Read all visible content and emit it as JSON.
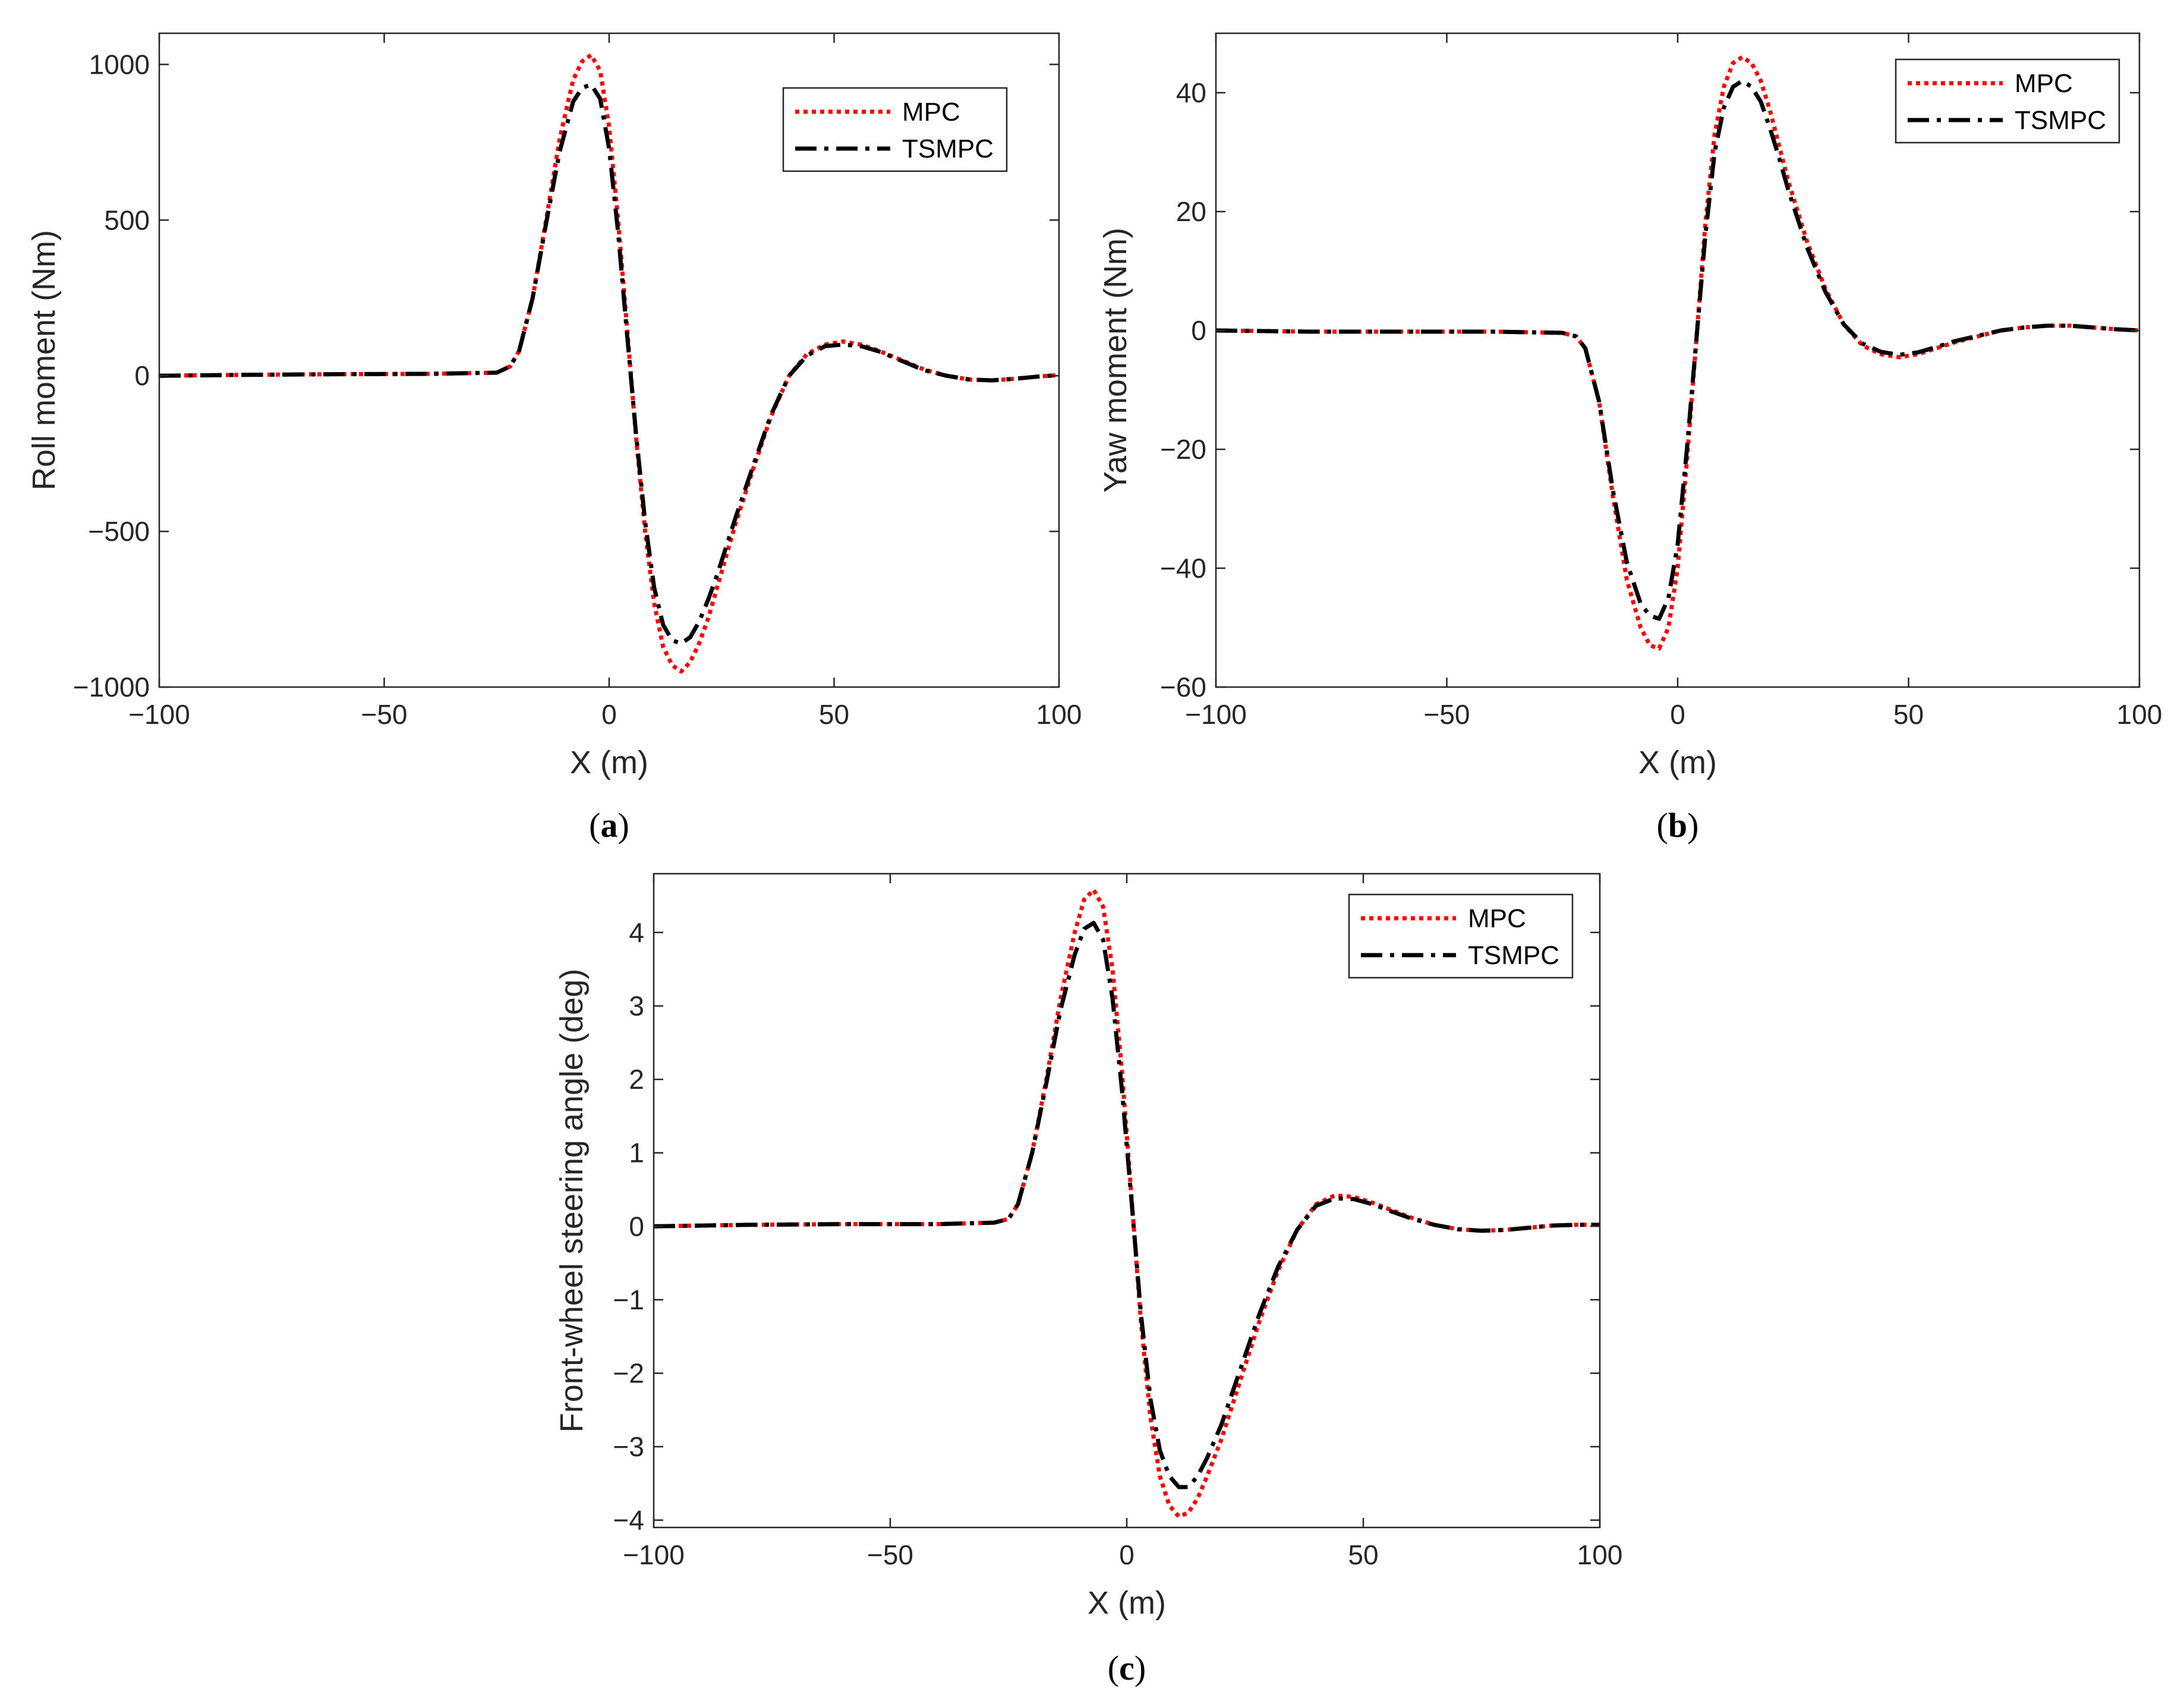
{
  "series_styles": {
    "MPC": {
      "color": "#ff0000",
      "dash": "dotted"
    },
    "TSMPC": {
      "color": "#000000",
      "dash": "dashdot"
    }
  },
  "chart_data": [
    {
      "type": "line",
      "caption": {
        "open": "(",
        "letter": "a",
        "close": ")"
      },
      "xlabel": "X (m)",
      "ylabel": "Roll moment (Nm)",
      "xlim": [
        -100,
        100
      ],
      "ylim": [
        -1000,
        1100
      ],
      "xticks": [
        -100,
        -50,
        0,
        50,
        100
      ],
      "xtick_labels": [
        "−100",
        "−50",
        "0",
        "50",
        "100"
      ],
      "yticks": [
        -1000,
        -500,
        0,
        500,
        1000
      ],
      "ytick_labels": [
        "−1000",
        "−500",
        "0",
        "500",
        "1000"
      ],
      "legend": {
        "position": "top-right",
        "entries": [
          "MPC",
          "TSMPC"
        ]
      },
      "series": [
        {
          "name": "MPC",
          "x": [
            -100,
            -80,
            -60,
            -40,
            -25,
            -22,
            -20,
            -17,
            -14,
            -11,
            -8,
            -6,
            -4,
            -2,
            0,
            2,
            4,
            6,
            8,
            10,
            12,
            14,
            16,
            18,
            20,
            22,
            24,
            28,
            32,
            36,
            40,
            44,
            48,
            52,
            56,
            60,
            65,
            70,
            75,
            80,
            85,
            90,
            95,
            100
          ],
          "y": [
            0,
            3,
            5,
            6,
            10,
            30,
            80,
            250,
            500,
            760,
            950,
            1010,
            1030,
            980,
            800,
            500,
            150,
            -200,
            -500,
            -730,
            -870,
            -930,
            -950,
            -920,
            -860,
            -780,
            -680,
            -480,
            -300,
            -130,
            0,
            70,
            100,
            110,
            100,
            80,
            50,
            20,
            0,
            -12,
            -15,
            -10,
            -3,
            2
          ]
        },
        {
          "name": "TSMPC",
          "x": [
            -100,
            -80,
            -60,
            -40,
            -25,
            -22,
            -20,
            -17,
            -14,
            -11,
            -8,
            -6,
            -4,
            -2,
            0,
            2,
            4,
            6,
            8,
            10,
            12,
            14,
            16,
            18,
            20,
            22,
            24,
            28,
            32,
            36,
            40,
            44,
            48,
            52,
            56,
            60,
            65,
            70,
            75,
            80,
            85,
            90,
            95,
            100
          ],
          "y": [
            0,
            3,
            5,
            6,
            10,
            30,
            80,
            250,
            490,
            720,
            880,
            925,
            935,
            890,
            730,
            460,
            130,
            -190,
            -470,
            -680,
            -800,
            -850,
            -860,
            -840,
            -790,
            -720,
            -640,
            -460,
            -290,
            -125,
            0,
            65,
            95,
            100,
            95,
            78,
            48,
            18,
            0,
            -12,
            -15,
            -10,
            -3,
            2
          ]
        }
      ]
    },
    {
      "type": "line",
      "caption": {
        "open": "(",
        "letter": "b",
        "close": ")"
      },
      "xlabel": "X (m)",
      "ylabel": "Yaw moment (Nm)",
      "xlim": [
        -100,
        100
      ],
      "ylim": [
        -60,
        50
      ],
      "xticks": [
        -100,
        -50,
        0,
        50,
        100
      ],
      "xtick_labels": [
        "−100",
        "−50",
        "0",
        "50",
        "100"
      ],
      "yticks": [
        -60,
        -40,
        -20,
        0,
        20,
        40
      ],
      "ytick_labels": [
        "−60",
        "−40",
        "−20",
        "0",
        "20",
        "40"
      ],
      "legend": {
        "position": "top-right",
        "entries": [
          "MPC",
          "TSMPC"
        ]
      },
      "series": [
        {
          "name": "MPC",
          "x": [
            -100,
            -80,
            -60,
            -40,
            -25,
            -22,
            -20,
            -17,
            -14,
            -11,
            -8,
            -6,
            -4,
            -2,
            0,
            2,
            4,
            6,
            8,
            10,
            12,
            14,
            16,
            18,
            20,
            22,
            24,
            28,
            32,
            36,
            40,
            44,
            48,
            52,
            56,
            60,
            65,
            70,
            75,
            80,
            85,
            90,
            95,
            100
          ],
          "y": [
            0,
            -0.2,
            -0.2,
            -0.2,
            -0.4,
            -1,
            -3,
            -12,
            -28,
            -42,
            -50,
            -53,
            -53.5,
            -50,
            -40,
            -22,
            -2,
            18,
            33,
            41,
            45,
            46,
            45,
            42,
            37,
            31,
            25,
            15,
            7,
            1,
            -2.5,
            -4,
            -4.5,
            -4,
            -3,
            -2,
            -1,
            0,
            0.5,
            0.8,
            0.8,
            0.5,
            0.2,
            0
          ]
        },
        {
          "name": "TSMPC",
          "x": [
            -100,
            -80,
            -60,
            -40,
            -25,
            -22,
            -20,
            -17,
            -14,
            -11,
            -8,
            -6,
            -4,
            -2,
            0,
            2,
            4,
            6,
            8,
            10,
            12,
            14,
            16,
            18,
            20,
            22,
            24,
            28,
            32,
            36,
            40,
            44,
            48,
            52,
            56,
            60,
            65,
            70,
            75,
            80,
            85,
            90,
            95,
            100
          ],
          "y": [
            0,
            -0.2,
            -0.2,
            -0.2,
            -0.4,
            -1,
            -3,
            -12,
            -27,
            -39,
            -46,
            -48,
            -48.5,
            -45,
            -36,
            -20,
            -2,
            16,
            30,
            37.5,
            41,
            42,
            41,
            38.5,
            34,
            29,
            23.5,
            14,
            6.5,
            1,
            -2.2,
            -3.6,
            -4.1,
            -3.7,
            -2.8,
            -1.8,
            -0.9,
            0,
            0.5,
            0.8,
            0.8,
            0.5,
            0.2,
            0
          ]
        }
      ]
    },
    {
      "type": "line",
      "caption": {
        "open": "(",
        "letter": "c",
        "close": ")"
      },
      "xlabel": "X (m)",
      "ylabel": "Front-wheel steering angle (deg)",
      "xlim": [
        -100,
        100
      ],
      "ylim": [
        -4.1,
        4.8
      ],
      "xticks": [
        -100,
        -50,
        0,
        50,
        100
      ],
      "xtick_labels": [
        "−100",
        "−50",
        "0",
        "50",
        "100"
      ],
      "yticks": [
        -4,
        -3,
        -2,
        -1,
        0,
        1,
        2,
        3,
        4
      ],
      "ytick_labels": [
        "−4",
        "−3",
        "−2",
        "−1",
        "0",
        "1",
        "2",
        "3",
        "4"
      ],
      "legend": {
        "position": "top-right",
        "entries": [
          "MPC",
          "TSMPC"
        ]
      },
      "series": [
        {
          "name": "MPC",
          "x": [
            -100,
            -80,
            -60,
            -40,
            -28,
            -25,
            -23,
            -20,
            -17,
            -14,
            -11,
            -9,
            -7,
            -5,
            -3,
            -1,
            1,
            3,
            5,
            7,
            9,
            11,
            13,
            15,
            17,
            20,
            24,
            28,
            32,
            36,
            40,
            44,
            48,
            52,
            56,
            60,
            65,
            70,
            75,
            80,
            85,
            90,
            95,
            100
          ],
          "y": [
            0,
            0.02,
            0.03,
            0.03,
            0.05,
            0.1,
            0.3,
            1.0,
            2.0,
            3.1,
            4.0,
            4.45,
            4.58,
            4.35,
            3.5,
            2.1,
            0.4,
            -1.3,
            -2.6,
            -3.4,
            -3.8,
            -3.95,
            -3.9,
            -3.7,
            -3.4,
            -2.9,
            -2.1,
            -1.3,
            -0.6,
            -0.05,
            0.3,
            0.42,
            0.4,
            0.32,
            0.22,
            0.12,
            0.02,
            -0.04,
            -0.06,
            -0.05,
            -0.02,
            0.01,
            0.02,
            0.02
          ]
        },
        {
          "name": "TSMPC",
          "x": [
            -100,
            -80,
            -60,
            -40,
            -28,
            -25,
            -23,
            -20,
            -17,
            -14,
            -11,
            -9,
            -7,
            -5,
            -3,
            -1,
            1,
            3,
            5,
            7,
            9,
            11,
            13,
            15,
            17,
            20,
            24,
            28,
            32,
            36,
            40,
            44,
            48,
            52,
            56,
            60,
            65,
            70,
            75,
            80,
            85,
            90,
            95,
            100
          ],
          "y": [
            0,
            0.02,
            0.03,
            0.03,
            0.05,
            0.1,
            0.3,
            1.0,
            1.95,
            2.95,
            3.7,
            4.05,
            4.13,
            3.9,
            3.1,
            1.85,
            0.35,
            -1.2,
            -2.35,
            -3.05,
            -3.4,
            -3.55,
            -3.55,
            -3.4,
            -3.15,
            -2.7,
            -1.95,
            -1.2,
            -0.55,
            -0.05,
            0.28,
            0.38,
            0.37,
            0.3,
            0.2,
            0.11,
            0.02,
            -0.04,
            -0.06,
            -0.05,
            -0.02,
            0.01,
            0.02,
            0.02
          ]
        }
      ]
    }
  ]
}
